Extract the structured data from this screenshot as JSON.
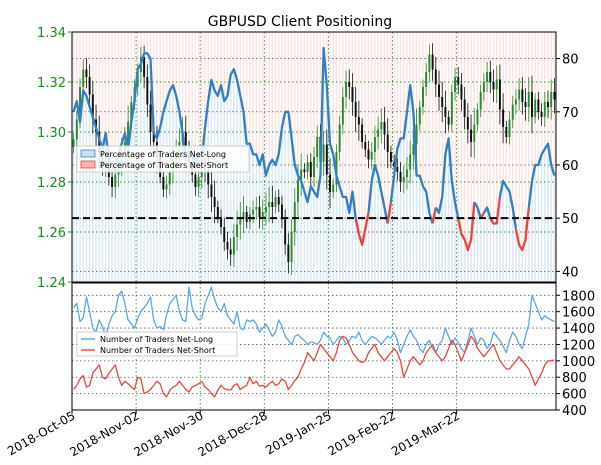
{
  "chart_data": [
    {
      "type": "candlestick+line",
      "title": "GBPUSD Client Positioning",
      "y_left": {
        "ticks": [
          "1.24",
          "1.26",
          "1.28",
          "1.30",
          "1.32",
          "1.34"
        ],
        "ylim": [
          1.24,
          1.34
        ],
        "color": "#1b8a1b"
      },
      "y_right": {
        "ticks": [
          "40",
          "50",
          "60",
          "70",
          "80"
        ],
        "ylim": [
          38,
          85
        ]
      },
      "x_ticks": [
        "2018-Oct-05",
        "2018-Nov-02",
        "2018-Nov-30",
        "2018-Dec-28",
        "2019-Jan-25",
        "2019-Feb-22",
        "2019-Mar-22"
      ],
      "threshold": 50,
      "grid": true,
      "legend": {
        "placement": "center-left",
        "entries": [
          {
            "label": "Percentage of Traders Net-Long",
            "color": "#3a86c8",
            "fill": "#c7def3"
          },
          {
            "label": "Percentage of Traders Net-Short",
            "color": "#e8453c",
            "fill": "#f5b5b2"
          }
        ]
      },
      "series": [
        {
          "name": "Percentage of Traders Net-Long",
          "values": [
            70,
            72,
            68,
            74,
            73,
            71,
            69,
            67,
            65,
            63,
            66,
            61,
            60,
            59,
            62,
            64,
            66,
            63,
            68,
            72,
            78,
            79,
            81,
            81,
            80,
            66,
            65,
            67,
            70,
            72,
            74,
            75,
            73,
            70,
            66,
            61,
            63,
            62,
            60,
            62,
            61,
            67,
            72,
            76,
            74,
            73,
            75,
            72,
            73,
            77,
            78,
            76,
            73,
            70,
            64,
            64,
            62,
            62,
            60,
            62,
            58,
            60,
            61,
            60,
            62,
            67,
            70,
            70,
            65,
            60,
            58,
            57,
            55,
            53,
            56,
            55,
            54,
            58,
            82,
            75,
            64,
            62,
            58,
            56,
            54,
            54,
            51,
            55,
            50,
            47,
            45,
            48,
            51,
            57,
            60,
            58,
            55,
            52,
            49,
            53,
            58,
            63,
            65,
            65,
            70,
            75,
            70,
            58,
            58,
            56,
            55,
            51,
            49,
            52,
            51,
            54,
            62,
            65,
            57,
            53,
            50,
            47,
            46,
            44,
            46,
            53,
            52,
            50,
            51,
            52,
            50,
            49,
            49,
            54,
            57,
            56,
            55,
            52,
            48,
            45,
            44,
            46,
            52,
            57,
            60,
            60,
            62,
            63,
            64,
            60,
            58
          ]
        }
      ],
      "gbpusd_close": [
        1.297,
        1.305,
        1.318,
        1.325,
        1.322,
        1.315,
        1.305,
        1.3,
        1.292,
        1.285,
        1.29,
        1.282,
        1.278,
        1.283,
        1.288,
        1.292,
        1.296,
        1.304,
        1.312,
        1.318,
        1.324,
        1.33,
        1.322,
        1.311,
        1.3,
        1.296,
        1.29,
        1.282,
        1.277,
        1.279,
        1.284,
        1.289,
        1.292,
        1.296,
        1.3,
        1.294,
        1.288,
        1.283,
        1.278,
        1.282,
        1.289,
        1.285,
        1.279,
        1.274,
        1.27,
        1.266,
        1.262,
        1.256,
        1.253,
        1.251,
        1.258,
        1.263,
        1.266,
        1.268,
        1.264,
        1.267,
        1.269,
        1.27,
        1.266,
        1.268,
        1.27,
        1.272,
        1.27,
        1.274,
        1.271,
        1.265,
        1.255,
        1.248,
        1.26,
        1.272,
        1.281,
        1.285,
        1.284,
        1.288,
        1.282,
        1.29,
        1.298,
        1.288,
        1.295,
        1.283,
        1.276,
        1.279,
        1.292,
        1.303,
        1.314,
        1.32,
        1.318,
        1.312,
        1.306,
        1.303,
        1.296,
        1.293,
        1.289,
        1.292,
        1.298,
        1.301,
        1.304,
        1.299,
        1.292,
        1.288,
        1.286,
        1.284,
        1.28,
        1.282,
        1.285,
        1.291,
        1.295,
        1.303,
        1.31,
        1.318,
        1.324,
        1.331,
        1.325,
        1.319,
        1.314,
        1.31,
        1.306,
        1.303,
        1.316,
        1.322,
        1.319,
        1.313,
        1.306,
        1.301,
        1.296,
        1.303,
        1.309,
        1.316,
        1.32,
        1.324,
        1.32,
        1.317,
        1.321,
        1.309,
        1.302,
        1.298,
        1.305,
        1.311,
        1.313,
        1.317,
        1.312,
        1.31,
        1.316,
        1.306,
        1.313,
        1.308,
        1.306,
        1.312,
        1.31,
        1.316,
        1.313
      ]
    },
    {
      "type": "line",
      "y_right": {
        "ticks": [
          "400",
          "600",
          "800",
          "1000",
          "1200",
          "1400",
          "1600",
          "1800"
        ],
        "ylim": [
          400,
          1950
        ]
      },
      "grid": true,
      "legend": {
        "placement": "center-left",
        "entries": [
          {
            "label": "Number of Traders Net-Long",
            "color": "#5aa6e6"
          },
          {
            "label": "Number of Traders Net-Short",
            "color": "#e8453c"
          }
        ]
      },
      "series": [
        {
          "name": "Number of Traders Net-Long",
          "values": [
            1650,
            1700,
            1480,
            1520,
            1780,
            1600,
            1400,
            1350,
            1500,
            1420,
            1300,
            1450,
            1550,
            1600,
            1800,
            1850,
            1700,
            1500,
            1450,
            1400,
            1520,
            1600,
            1650,
            1700,
            1780,
            1500,
            1400,
            1420,
            1380,
            1560,
            1700,
            1750,
            1800,
            1600,
            1500,
            1480,
            1900,
            1650,
            1550,
            1500,
            1520,
            1700,
            1800,
            1900,
            1750,
            1650,
            1600,
            1700,
            1550,
            1500,
            1450,
            1600,
            1400,
            1380,
            1500,
            1480,
            1500,
            1450,
            1350,
            1400,
            1450,
            1380,
            1300,
            1350,
            1500,
            1420,
            1300,
            1250,
            1200,
            1300,
            1320,
            1280,
            1250,
            1200,
            1230,
            1220,
            1200,
            1250,
            1350,
            1300,
            1280,
            1200,
            1250,
            1300,
            1280,
            1200,
            1250,
            1300,
            1280,
            1350,
            1250,
            1200,
            1250,
            1300,
            1280,
            1250,
            1200,
            1250,
            1300,
            1280,
            1350,
            1250,
            1100,
            1200,
            1300,
            1380,
            1300,
            1250,
            1150,
            1100,
            1200,
            1250,
            1150,
            1100,
            1200,
            1250,
            1400,
            1300,
            1200,
            1280,
            1220,
            1150,
            1100,
            1250,
            1400,
            1300,
            1200,
            1280,
            1250,
            1150,
            1200,
            1350,
            1300,
            1250,
            1180,
            1100,
            1250,
            1350,
            1300,
            1200,
            1150,
            1300,
            1450,
            1800,
            1700,
            1600,
            1500,
            1550,
            1520,
            1500,
            1480
          ]
        },
        {
          "name": "Number of Traders Net-Short",
          "values": [
            650,
            700,
            780,
            820,
            680,
            700,
            850,
            900,
            950,
            800,
            780,
            850,
            900,
            950,
            800,
            700,
            750,
            720,
            680,
            650,
            800,
            780,
            600,
            620,
            650,
            700,
            750,
            720,
            600,
            560,
            640,
            680,
            700,
            750,
            700,
            650,
            620,
            680,
            700,
            720,
            750,
            680,
            650,
            600,
            560,
            640,
            700,
            660,
            650,
            640,
            700,
            720,
            650,
            680,
            700,
            800,
            720,
            750,
            690,
            700,
            680,
            720,
            750,
            700,
            720,
            780,
            750,
            650,
            700,
            760,
            800,
            900,
            980,
            1100,
            1050,
            1000,
            1100,
            1200,
            1150,
            1100,
            1050,
            1000,
            1100,
            1250,
            1300,
            1280,
            1200,
            1100,
            1050,
            1000,
            980,
            1000,
            1100,
            1150,
            1200,
            1100,
            1050,
            1000,
            1050,
            1100,
            1150,
            1100,
            1000,
            800,
            900,
            1000,
            1050,
            1000,
            950,
            1000,
            1100,
            1150,
            1200,
            1100,
            1050,
            1000,
            1050,
            1150,
            1250,
            1200,
            1100,
            1000,
            1100,
            1200,
            1300,
            1250,
            1150,
            1100,
            1050,
            1100,
            1150,
            1200,
            1100,
            1000,
            950,
            900,
            900,
            950,
            1000,
            1050,
            1000,
            950,
            900,
            800,
            700,
            780,
            850,
            950,
            1000,
            1000,
            1010
          ]
        }
      ]
    }
  ]
}
